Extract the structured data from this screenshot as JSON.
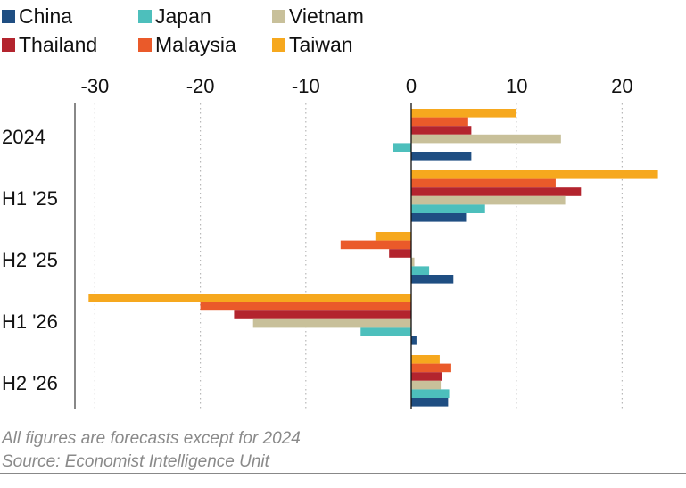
{
  "chart_data": {
    "type": "bar",
    "orientation": "horizontal",
    "title": "",
    "xlabel": "",
    "ylabel": "",
    "xlim": [
      -30,
      23.5
    ],
    "xticks": [
      -30,
      -20,
      -10,
      0,
      10,
      20
    ],
    "tick_labels": [
      "-30",
      "-20",
      "-10",
      "0",
      "10",
      "20"
    ],
    "grid": "vertical dotted",
    "legend_position": "top-left",
    "categories": [
      "2024",
      "H1 '25",
      "H2 '25",
      "H1 '26",
      "H2 '26"
    ],
    "series": [
      {
        "name": "China",
        "color": "#1f4e82",
        "values": [
          5.7,
          5.2,
          4.0,
          0.5,
          3.5
        ]
      },
      {
        "name": "Japan",
        "color": "#4dbfbc",
        "values": [
          -1.7,
          7.0,
          1.7,
          -4.8,
          3.6
        ]
      },
      {
        "name": "Vietnam",
        "color": "#c8c09a",
        "values": [
          14.2,
          14.6,
          0.3,
          -15.0,
          2.8
        ]
      },
      {
        "name": "Thailand",
        "color": "#b3242e",
        "values": [
          5.7,
          16.1,
          -2.1,
          -16.8,
          2.9
        ]
      },
      {
        "name": "Malaysia",
        "color": "#ea5a2a",
        "values": [
          5.4,
          13.7,
          -6.7,
          -20.0,
          3.8
        ]
      },
      {
        "name": "Taiwan",
        "color": "#f6a81e",
        "values": [
          9.9,
          23.4,
          -3.4,
          -30.6,
          2.7
        ]
      }
    ],
    "legend": [
      "China",
      "Japan",
      "Vietnam",
      "Thailand",
      "Malaysia",
      "Taiwan"
    ]
  },
  "footnotes": {
    "line1": "All figures are forecasts except for 2024",
    "line2": "Source: Economist Intelligence Unit"
  }
}
